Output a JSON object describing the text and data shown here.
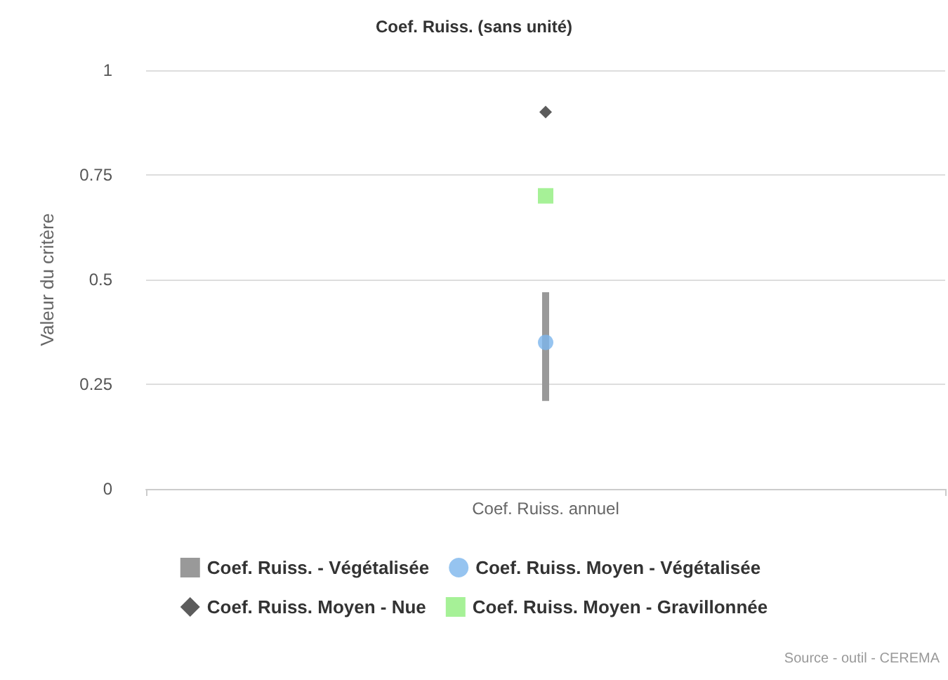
{
  "chart_data": {
    "type": "bar",
    "title": "Coef. Ruiss. (sans unité)",
    "ylabel": "Valeur du critère",
    "categories": [
      "Coef. Ruiss. annuel"
    ],
    "series": [
      {
        "name": "Coef. Ruiss. - Végétalisée",
        "color": "#999999",
        "base": [
          0.21
        ],
        "values": [
          0.26
        ]
      },
      {
        "name": "Coef. Ruiss. Moyen - Végétalisée",
        "type": "scatter",
        "marker": "circle",
        "color": "#7cb5ec",
        "values": [
          0.35
        ]
      },
      {
        "name": "Coef. Ruiss. Moyen - Nue",
        "type": "scatter",
        "marker": "diamond",
        "color": "#333333",
        "values": [
          0.9
        ]
      },
      {
        "name": "Coef. Ruiss. Moyen - Gravillonnée",
        "type": "scatter",
        "marker": "square",
        "color": "#90ed7d",
        "values": [
          0.7
        ]
      }
    ],
    "ylim": [
      0,
      1
    ],
    "yticks": [
      0,
      0.25,
      0.5,
      0.75,
      1
    ],
    "grid": "y",
    "legend": "bottom",
    "annotations": [
      "Source - outil - CEREMA"
    ]
  }
}
